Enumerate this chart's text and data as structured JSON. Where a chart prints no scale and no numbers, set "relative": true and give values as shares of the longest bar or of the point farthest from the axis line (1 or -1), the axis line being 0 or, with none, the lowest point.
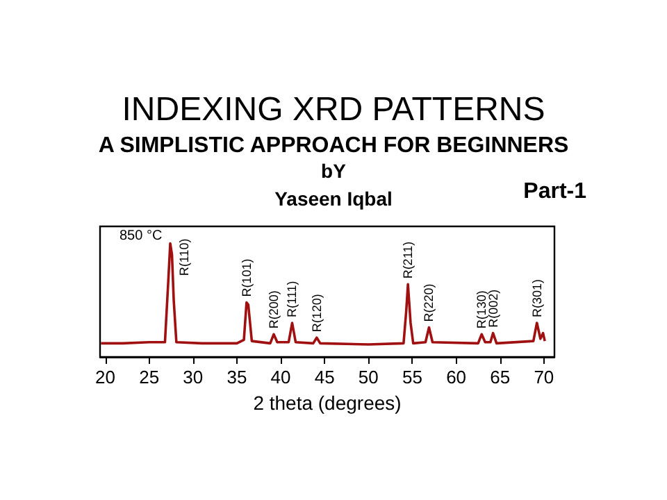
{
  "chart_data": {
    "type": "line",
    "relative": true,
    "title": "INDEXING XRD PATTERNS",
    "subtitle": "A SIMPLISTIC APPROACH FOR BEGINNERS",
    "xlabel": "2 theta (degrees)",
    "xlim": [
      19.4,
      71.2
    ],
    "xticks": [
      20,
      25,
      30,
      35,
      40,
      45,
      50,
      55,
      60,
      65,
      70
    ],
    "annotations": [
      "bY",
      "Yaseen Iqbal",
      "Part-1",
      "850 °C",
      {
        "text": "R(110)",
        "x": 27.4,
        "y": 1.0
      },
      {
        "text": "R(101)",
        "x": 36.1,
        "y": 0.48
      },
      {
        "text": "R(200)",
        "x": 39.2,
        "y": 0.2
      },
      {
        "text": "R(111)",
        "x": 41.3,
        "y": 0.3
      },
      {
        "text": "R(120)",
        "x": 44.1,
        "y": 0.17
      },
      {
        "text": "R(211)",
        "x": 54.5,
        "y": 0.64
      },
      {
        "text": "R(220)",
        "x": 56.9,
        "y": 0.26
      },
      {
        "text": "R(130)",
        "x": 62.9,
        "y": 0.2
      },
      {
        "text": "R(002)",
        "x": 64.2,
        "y": 0.21
      },
      {
        "text": "R(301)",
        "x": 69.2,
        "y": 0.3
      }
    ],
    "series": [
      {
        "color": "#a01010",
        "x": [
          19.5,
          22,
          25,
          26.8,
          27.2,
          27.4,
          27.6,
          27.8,
          28.1,
          31,
          35,
          35.8,
          36.1,
          36.3,
          36.7,
          38.8,
          39.2,
          39.6,
          40.9,
          41.3,
          41.7,
          43.7,
          44.1,
          44.5,
          50,
          54,
          54.3,
          54.5,
          54.8,
          55.1,
          56.5,
          56.9,
          57.3,
          62.5,
          62.9,
          63.3,
          63.9,
          64.2,
          64.6,
          68.8,
          69.2,
          69.6,
          69.9,
          70.1
        ],
        "values": [
          0.12,
          0.12,
          0.13,
          0.13,
          0.7,
          1.0,
          0.9,
          0.5,
          0.13,
          0.12,
          0.12,
          0.15,
          0.48,
          0.46,
          0.14,
          0.12,
          0.2,
          0.13,
          0.13,
          0.3,
          0.13,
          0.12,
          0.17,
          0.12,
          0.11,
          0.12,
          0.4,
          0.64,
          0.3,
          0.12,
          0.13,
          0.26,
          0.13,
          0.12,
          0.2,
          0.13,
          0.13,
          0.21,
          0.12,
          0.14,
          0.3,
          0.16,
          0.21,
          0.14
        ]
      }
    ]
  }
}
